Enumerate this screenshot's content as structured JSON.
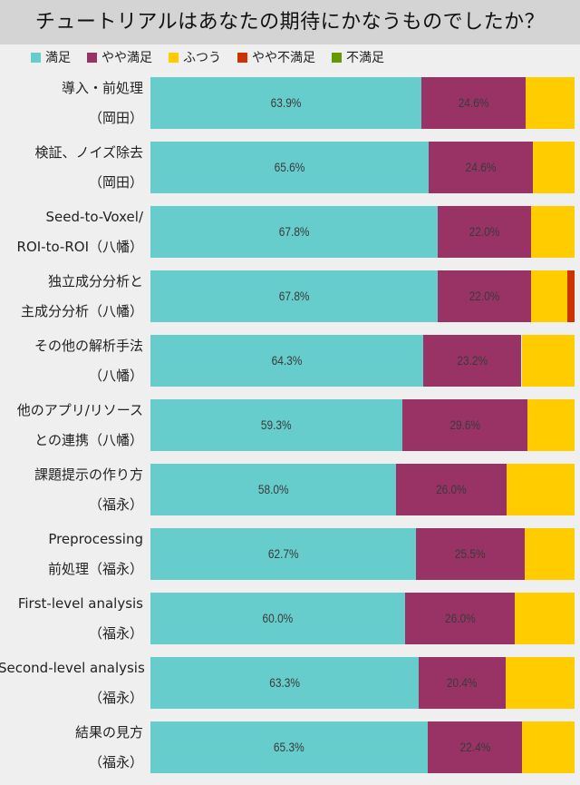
{
  "chart_data": {
    "type": "bar",
    "orientation": "horizontal",
    "stacked": true,
    "title": "チュートリアルはあなたの期待にかなうものでしたか？",
    "legend_position": "top",
    "xlim": [
      0,
      100
    ],
    "grid": false,
    "categories": [
      [
        "導入・前処理",
        "（岡田）"
      ],
      [
        "検証、ノイズ除去",
        "（岡田）"
      ],
      [
        "Seed-to-Voxel/",
        "ROI-to-ROI（八幡）"
      ],
      [
        "独立成分分析と",
        "主成分分析（八幡）"
      ],
      [
        "その他の解析手法",
        "（八幡）"
      ],
      [
        "他のアプリ/リソース",
        "との連携（八幡）"
      ],
      [
        "課題提示の作り方",
        "（福永）"
      ],
      [
        "Preprocessing",
        "前処理（福永）"
      ],
      [
        "First-level analysis",
        "（福永）"
      ],
      [
        "Second-level analysis",
        "（福永）"
      ],
      [
        "結果の見方",
        "（福永）"
      ]
    ],
    "series": [
      {
        "name": "満足",
        "color": "#66cccc",
        "values": [
          63.9,
          65.6,
          67.8,
          67.8,
          64.3,
          59.3,
          58.0,
          62.7,
          60.0,
          63.3,
          65.3
        ],
        "labels": [
          "63.9%",
          "65.6%",
          "67.8%",
          "67.8%",
          "64.3%",
          "59.3%",
          "58.0%",
          "62.7%",
          "60.0%",
          "63.3%",
          "65.3%"
        ]
      },
      {
        "name": "やや満足",
        "color": "#993366",
        "values": [
          24.6,
          24.6,
          22.0,
          22.0,
          23.2,
          29.6,
          26.0,
          25.5,
          26.0,
          20.4,
          22.4
        ],
        "labels": [
          "24.6%",
          "24.6%",
          "22.0%",
          "22.0%",
          "23.2%",
          "29.6%",
          "26.0%",
          "25.5%",
          "26.0%",
          "20.4%",
          "22.4%"
        ]
      },
      {
        "name": "ふつう",
        "color": "#ffcc00",
        "values": [
          11.5,
          9.8,
          10.2,
          8.5,
          12.5,
          11.1,
          16.0,
          11.8,
          14.0,
          16.3,
          12.3
        ]
      },
      {
        "name": "やや不満足",
        "color": "#cc3300",
        "values": [
          0,
          0,
          0,
          1.7,
          0,
          0,
          0,
          0,
          0,
          0,
          0
        ]
      },
      {
        "name": "不満足",
        "color": "#669900",
        "values": [
          0,
          0,
          0,
          0,
          0,
          0,
          0,
          0,
          0,
          0,
          0
        ]
      }
    ]
  }
}
